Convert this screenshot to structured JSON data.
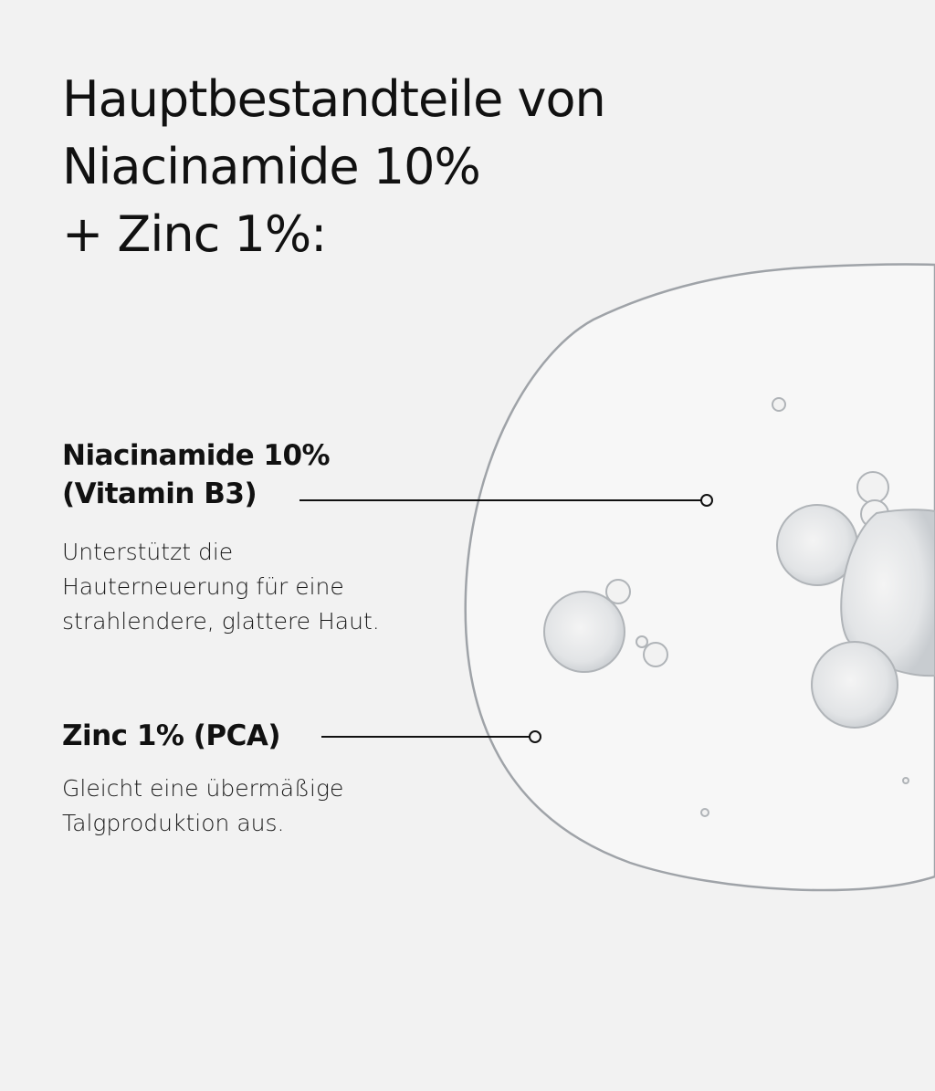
{
  "title": {
    "lines": [
      "Hauptbestandteile von",
      "Niacinamide 10%",
      "+ Zinc 1%:"
    ]
  },
  "ingredients": [
    {
      "name_lines": [
        "Niacinamide 10%",
        "(Vitamin B3)"
      ],
      "description_lines": [
        "Unterstützt die",
        "Hauterneuerung für eine",
        "strahlendere, glattere Haut."
      ]
    },
    {
      "name_lines": [
        "Zinc 1% (PCA)"
      ],
      "description_lines": [
        "Gleicht eine übermäßige",
        "Talgproduktion aus."
      ]
    }
  ],
  "colors": {
    "background": "#f2f2f2",
    "text": "#111111"
  }
}
